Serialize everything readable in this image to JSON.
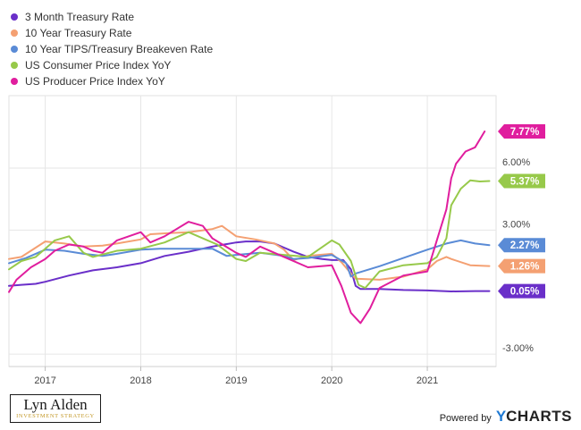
{
  "chart_data": {
    "type": "line",
    "title": "",
    "xlabel": "",
    "ylabel": "",
    "x_ticks": [
      "2017",
      "2018",
      "2019",
      "2020",
      "2021"
    ],
    "x_tick_positions": [
      2017.0,
      2018.0,
      2019.0,
      2020.0,
      2021.0
    ],
    "xlim": [
      2016.62,
      2021.72
    ],
    "y_ticks": [
      "6.00%",
      "3.00%",
      "-3.00%"
    ],
    "y_tick_values": [
      6.0,
      3.0,
      -3.0
    ],
    "ylim": [
      -3.6,
      9.5
    ],
    "grid": true,
    "legend_position": "top-left",
    "series": [
      {
        "name": "3 Month Treasury Rate",
        "color": "#6a2fc9",
        "last_label": "0.05%",
        "x": [
          2016.62,
          2016.75,
          2016.9,
          2017.0,
          2017.25,
          2017.5,
          2017.75,
          2018.0,
          2018.25,
          2018.5,
          2018.75,
          2019.0,
          2019.1,
          2019.25,
          2019.4,
          2019.5,
          2019.6,
          2019.75,
          2019.9,
          2020.0,
          2020.12,
          2020.2,
          2020.25,
          2020.3,
          2020.5,
          2020.75,
          2021.0,
          2021.25,
          2021.5,
          2021.65
        ],
        "y": [
          0.3,
          0.35,
          0.4,
          0.5,
          0.8,
          1.05,
          1.2,
          1.4,
          1.75,
          1.95,
          2.2,
          2.4,
          2.45,
          2.45,
          2.35,
          2.15,
          1.95,
          1.7,
          1.6,
          1.55,
          1.55,
          1.1,
          0.3,
          0.15,
          0.15,
          0.1,
          0.08,
          0.03,
          0.05,
          0.05
        ]
      },
      {
        "name": "10 Year Treasury Rate",
        "color": "#f4a072",
        "last_label": "1.26%",
        "x": [
          2016.62,
          2016.75,
          2016.85,
          2017.0,
          2017.2,
          2017.4,
          2017.6,
          2017.75,
          2018.0,
          2018.1,
          2018.3,
          2018.5,
          2018.75,
          2018.85,
          2019.0,
          2019.2,
          2019.4,
          2019.5,
          2019.6,
          2019.75,
          2020.0,
          2020.1,
          2020.2,
          2020.25,
          2020.5,
          2020.75,
          2021.0,
          2021.1,
          2021.2,
          2021.25,
          2021.45,
          2021.65
        ],
        "y": [
          1.6,
          1.7,
          2.0,
          2.45,
          2.35,
          2.2,
          2.25,
          2.35,
          2.55,
          2.8,
          2.85,
          2.9,
          3.05,
          3.2,
          2.7,
          2.55,
          2.35,
          2.05,
          1.55,
          1.75,
          1.85,
          1.45,
          0.9,
          0.65,
          0.6,
          0.75,
          1.1,
          1.5,
          1.7,
          1.6,
          1.3,
          1.26
        ]
      },
      {
        "name": "10 Year TIPS/Treasury Breakeven Rate",
        "color": "#5a8bd6",
        "last_label": "2.27%",
        "x": [
          2016.62,
          2016.8,
          2016.9,
          2017.0,
          2017.2,
          2017.4,
          2017.6,
          2017.75,
          2018.0,
          2018.2,
          2018.5,
          2018.75,
          2018.9,
          2019.0,
          2019.25,
          2019.5,
          2019.6,
          2019.75,
          2020.0,
          2020.15,
          2020.2,
          2020.25,
          2020.5,
          2020.75,
          2021.0,
          2021.2,
          2021.35,
          2021.5,
          2021.65
        ],
        "y": [
          1.4,
          1.65,
          1.85,
          2.05,
          2.0,
          1.85,
          1.75,
          1.85,
          2.05,
          2.1,
          2.1,
          2.1,
          1.75,
          1.8,
          1.9,
          1.75,
          1.6,
          1.65,
          1.8,
          1.4,
          0.75,
          0.9,
          1.25,
          1.65,
          2.05,
          2.35,
          2.5,
          2.35,
          2.27
        ]
      },
      {
        "name": "US Consumer Price Index YoY",
        "color": "#97c94a",
        "last_label": "5.37%",
        "x": [
          2016.62,
          2016.75,
          2016.9,
          2017.0,
          2017.1,
          2017.25,
          2017.4,
          2017.5,
          2017.75,
          2018.0,
          2018.25,
          2018.5,
          2018.7,
          2018.8,
          2019.0,
          2019.1,
          2019.25,
          2019.5,
          2019.75,
          2020.0,
          2020.08,
          2020.2,
          2020.28,
          2020.35,
          2020.5,
          2020.75,
          2021.0,
          2021.1,
          2021.2,
          2021.25,
          2021.35,
          2021.45,
          2021.55,
          2021.65
        ],
        "y": [
          1.1,
          1.5,
          1.7,
          2.1,
          2.5,
          2.7,
          1.9,
          1.7,
          2.0,
          2.1,
          2.4,
          2.9,
          2.5,
          2.3,
          1.6,
          1.5,
          1.9,
          1.8,
          1.7,
          2.5,
          2.3,
          1.5,
          0.35,
          0.2,
          1.0,
          1.3,
          1.4,
          1.7,
          2.6,
          4.2,
          5.0,
          5.4,
          5.35,
          5.37
        ]
      },
      {
        "name": "US Producer Price Index YoY",
        "color": "#e01e9e",
        "last_label": "7.77%",
        "x": [
          2016.62,
          2016.7,
          2016.85,
          2017.0,
          2017.1,
          2017.25,
          2017.4,
          2017.5,
          2017.6,
          2017.75,
          2018.0,
          2018.1,
          2018.25,
          2018.5,
          2018.65,
          2018.75,
          2019.0,
          2019.1,
          2019.25,
          2019.5,
          2019.75,
          2020.0,
          2020.1,
          2020.2,
          2020.3,
          2020.4,
          2020.5,
          2020.75,
          2021.0,
          2021.1,
          2021.2,
          2021.25,
          2021.3,
          2021.4,
          2021.5,
          2021.6
        ],
        "y": [
          0.0,
          0.6,
          1.2,
          1.6,
          2.0,
          2.3,
          2.2,
          2.0,
          1.9,
          2.5,
          2.9,
          2.4,
          2.7,
          3.4,
          3.2,
          2.6,
          1.9,
          1.7,
          2.2,
          1.7,
          1.2,
          1.3,
          0.3,
          -1.0,
          -1.5,
          -0.8,
          0.2,
          0.8,
          1.0,
          2.5,
          4.0,
          5.5,
          6.2,
          6.8,
          7.0,
          7.77
        ]
      }
    ]
  },
  "branding": {
    "logo_name": "Lyn Alden",
    "logo_subtitle": "INVESTMENT STRATEGY",
    "powered_by": "Powered by",
    "ycharts_y": "Y",
    "ycharts_rest": "CHARTS"
  }
}
